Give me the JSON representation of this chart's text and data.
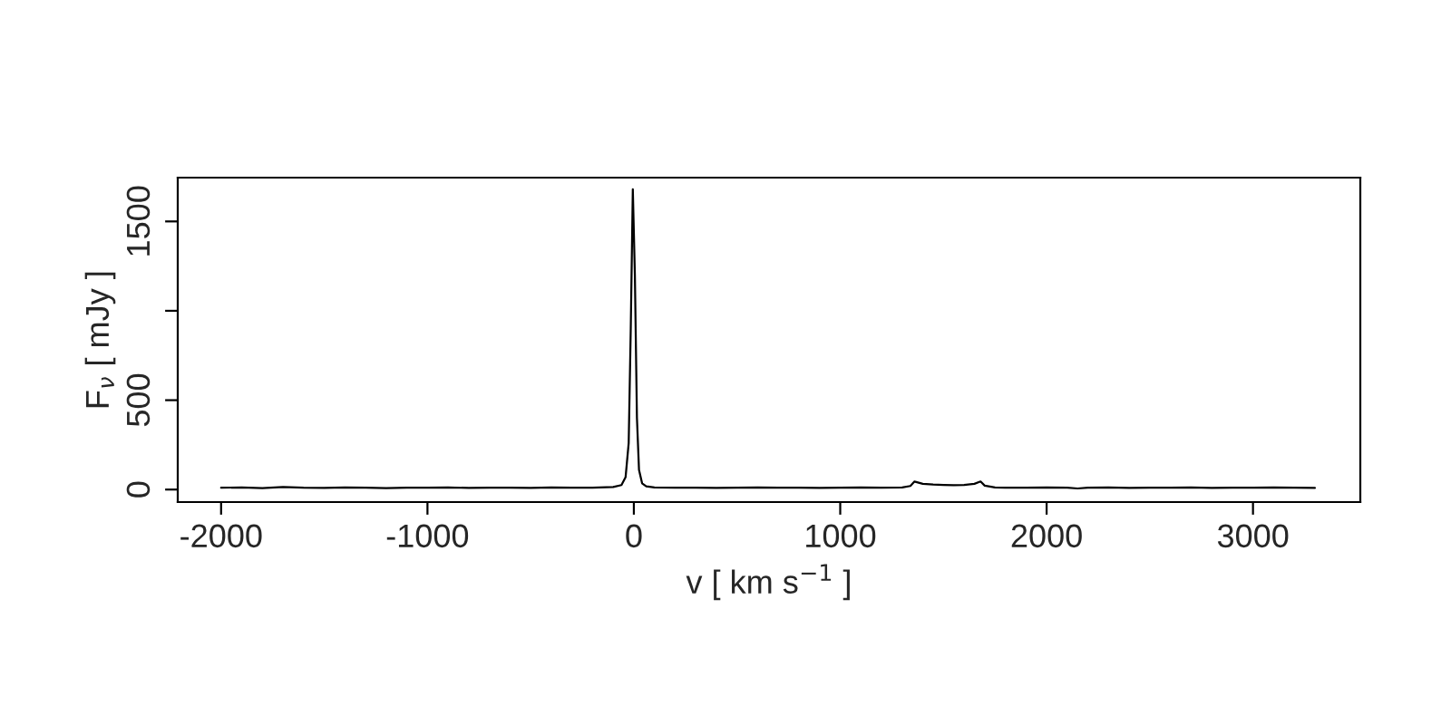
{
  "chart_data": {
    "type": "line",
    "xlabel": "v [ km s$^{−1}$ ]",
    "ylabel": "F$_{ν}$ [ mJy ]",
    "xlim": [
      -2210,
      3520
    ],
    "ylim": [
      -70,
      1745
    ],
    "xticks": [
      -2000,
      -1000,
      0,
      1000,
      2000,
      3000
    ],
    "yticks": [
      0,
      500,
      {
        "value": 1000,
        "label": null
      },
      1500
    ],
    "grid": false,
    "legend": false,
    "marker": "none",
    "line_style": "solid",
    "series": [
      {
        "color": "#000000",
        "x": [
          -2000,
          -1900,
          -1800,
          -1700,
          -1600,
          -1500,
          -1400,
          -1300,
          -1200,
          -1100,
          -1000,
          -900,
          -800,
          -700,
          -600,
          -500,
          -400,
          -300,
          -200,
          -100,
          -60,
          -40,
          -25,
          -15,
          -5,
          5,
          15,
          25,
          40,
          60,
          100,
          200,
          300,
          400,
          500,
          600,
          700,
          800,
          900,
          1000,
          1100,
          1200,
          1300,
          1340,
          1360,
          1400,
          1450,
          1500,
          1550,
          1600,
          1650,
          1680,
          1700,
          1750,
          1800,
          1900,
          2000,
          2100,
          2150,
          2200,
          2300,
          2400,
          2500,
          2600,
          2700,
          2800,
          2900,
          3000,
          3100,
          3200,
          3300
        ],
        "values": [
          10,
          12,
          8,
          14,
          10,
          9,
          12,
          10,
          8,
          11,
          10,
          12,
          9,
          10,
          11,
          9,
          12,
          10,
          11,
          14,
          25,
          70,
          260,
          900,
          1680,
          1200,
          400,
          110,
          35,
          18,
          12,
          10,
          11,
          9,
          10,
          12,
          10,
          11,
          9,
          10,
          12,
          11,
          12,
          20,
          45,
          32,
          28,
          26,
          24,
          26,
          32,
          45,
          22,
          12,
          10,
          11,
          12,
          10,
          6,
          11,
          12,
          9,
          11,
          10,
          12,
          9,
          11,
          10,
          12,
          10,
          9
        ]
      }
    ]
  }
}
